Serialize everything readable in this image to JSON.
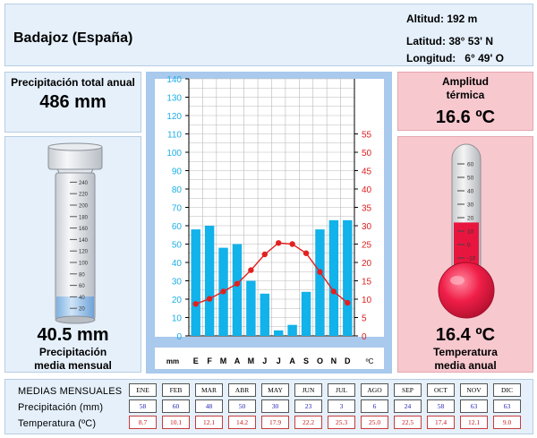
{
  "header": {
    "city": "Badajoz (España)",
    "altitude": "Altitud: 192 m",
    "latitude": "Latitud: 38° 53' N",
    "longitude": "Longitud:   6° 49' O"
  },
  "precip_total": {
    "label": "Precipitación total anual",
    "value": "486 mm"
  },
  "precip_monthly": {
    "value": "40.5 mm",
    "label_line1": "Precipitación",
    "label_line2": "media mensual",
    "gauge_level_mm": 40.5
  },
  "amplitude": {
    "label_line1": "Amplitud",
    "label_line2": "térmica",
    "value": "16.6 ºC"
  },
  "temp_annual": {
    "value": "16.4 ºC",
    "label_line1": "Temperatura",
    "label_line2": "media anual",
    "thermo_level_c": 16.4
  },
  "rain_gauge": {
    "ticks": [
      20,
      40,
      60,
      80,
      100,
      120,
      140,
      160,
      180,
      200,
      220,
      240
    ]
  },
  "thermometer": {
    "ticks": [
      60,
      50,
      40,
      30,
      20,
      10,
      0,
      -10
    ]
  },
  "chart_data": {
    "type": "bar",
    "categories": [
      "E",
      "F",
      "M",
      "A",
      "M",
      "J",
      "J",
      "A",
      "S",
      "O",
      "N",
      "D"
    ],
    "series": [
      {
        "values": [
          58,
          60,
          48,
          50,
          30,
          23,
          3,
          6,
          24,
          58,
          63,
          63
        ],
        "axis": "left"
      },
      {
        "type": "line",
        "values": [
          8.7,
          10.1,
          12.1,
          14.2,
          17.9,
          22.2,
          25.3,
          25.0,
          22.5,
          17.4,
          12.1,
          9.0
        ],
        "axis": "right"
      }
    ],
    "left_axis": {
      "label": "mm",
      "range": [
        0,
        140
      ],
      "ticks": [
        0,
        10,
        20,
        30,
        40,
        50,
        60,
        70,
        80,
        90,
        100,
        110,
        120,
        130,
        140
      ],
      "color": "#1eaee6"
    },
    "right_axis": {
      "label": "ºC",
      "range": [
        0,
        70
      ],
      "ticks": [
        0,
        5,
        10,
        15,
        20,
        25,
        30,
        35,
        40,
        45,
        50,
        55
      ],
      "color": "#e02020"
    },
    "grid": true,
    "colors": {
      "bars": "#12b2ea",
      "line": "#e32020"
    }
  },
  "table": {
    "row_labels": [
      "MEDIAS MENSUALES",
      "Precipitación (mm)",
      "Temperatura (ºC)"
    ],
    "months": [
      "ENE",
      "FEB",
      "MAR",
      "ABR",
      "MAY",
      "JUN",
      "JUL",
      "AGO",
      "SEP",
      "OCT",
      "NOV",
      "DIC"
    ],
    "precip": [
      "58",
      "60",
      "48",
      "50",
      "30",
      "23",
      "3",
      "6",
      "24",
      "58",
      "63",
      "63"
    ],
    "temp": [
      "8.7",
      "10.1",
      "12.1",
      "14.2",
      "17.9",
      "22.2",
      "25.3",
      "25.0",
      "22.5",
      "17.4",
      "12.1",
      "9.0"
    ]
  }
}
